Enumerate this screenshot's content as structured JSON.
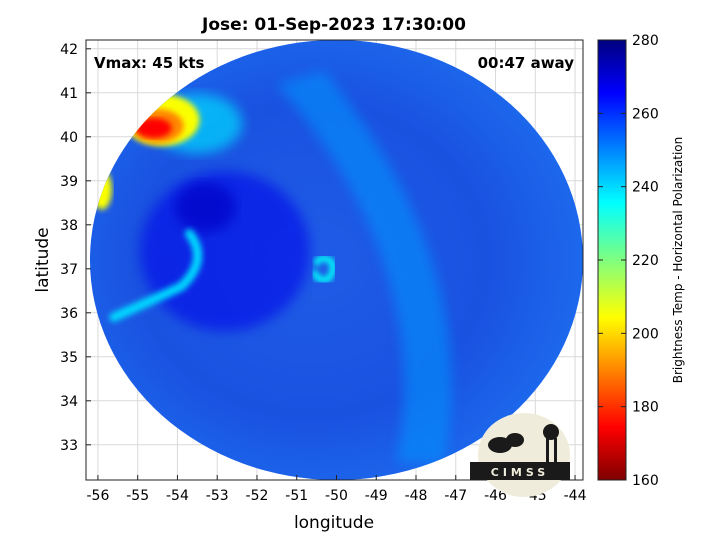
{
  "chart_data": {
    "type": "heatmap",
    "title": "Jose: 01-Sep-2023 17:30:00",
    "xlabel": "longitude",
    "ylabel": "latitude",
    "xlim": [
      -56.3,
      -43.8
    ],
    "ylim": [
      32.2,
      42.2
    ],
    "x_ticks": [
      -56,
      -55,
      -54,
      -53,
      -52,
      -51,
      -50,
      -49,
      -48,
      -47,
      -46,
      -45,
      -44
    ],
    "y_ticks": [
      33,
      34,
      35,
      36,
      37,
      38,
      39,
      40,
      41,
      42
    ],
    "grid": true,
    "annotations": {
      "vmax": "Vmax: 45 kts",
      "time_away": "00:47 away"
    },
    "colorbar": {
      "label": "Brightness Temp - Horizontal Polarization",
      "range": [
        160,
        280
      ],
      "ticks": [
        160,
        180,
        200,
        220,
        240,
        260,
        280
      ],
      "colormap": "jet"
    },
    "storm_center": {
      "lon": -50.3,
      "lat": 37.0
    },
    "swath": {
      "center_lon": -50.0,
      "center_lat": 37.2,
      "radius_lon": 6.2,
      "radius_lat": 5.0
    },
    "features": [
      {
        "name": "cold-cloud-cluster",
        "lon": -54.6,
        "lat": 40.2,
        "min_temp": 175
      },
      {
        "name": "cold-cloud-edge",
        "lon": -55.9,
        "lat": 38.8,
        "min_temp": 205
      },
      {
        "name": "spiral-band",
        "lon": -54.5,
        "lat": 36.2,
        "min_temp": 240
      },
      {
        "name": "eye-band",
        "lon": -50.3,
        "lat": 37.0,
        "min_temp": 235
      }
    ],
    "logo_text": "CIMSS"
  }
}
